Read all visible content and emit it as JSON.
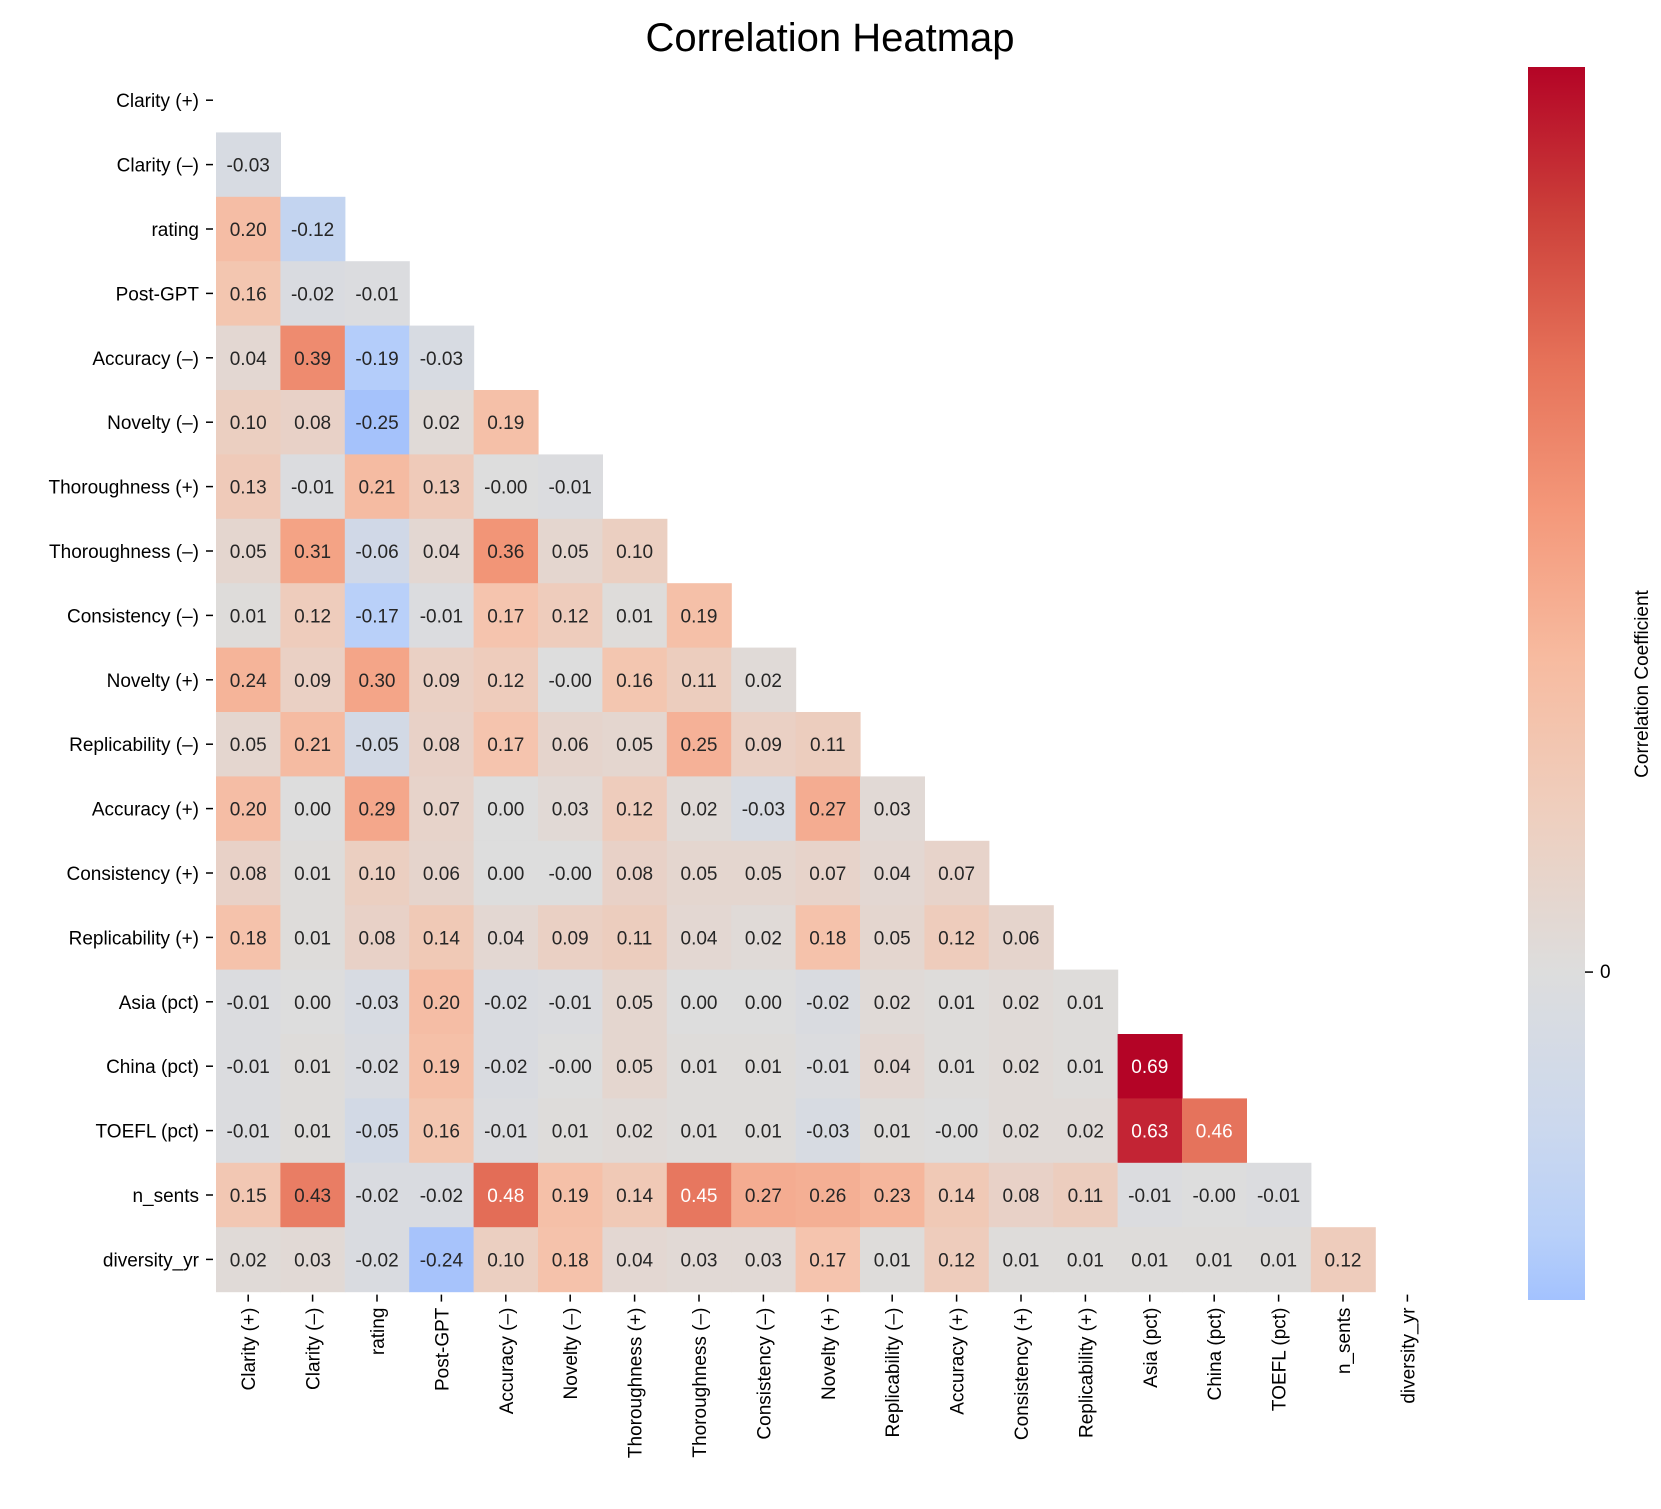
{
  "chart_data": {
    "type": "heatmap",
    "title": "Correlation Heatmap",
    "labels": [
      "Clarity (+)",
      "Clarity (–)",
      "rating",
      "Post-GPT",
      "Accuracy (–)",
      "Novelty (–)",
      "Thoroughness (+)",
      "Thoroughness (–)",
      "Consistency (–)",
      "Novelty (+)",
      "Replicability (–)",
      "Accuracy (+)",
      "Consistency (+)",
      "Replicability (+)",
      "Asia (pct)",
      "China (pct)",
      "TOEFL (pct)",
      "n_sents",
      "diversity_yr"
    ],
    "mask": "upper-triangle-and-diagonal",
    "lower_triangle_values": [
      [],
      [
        -0.03
      ],
      [
        0.2,
        -0.12
      ],
      [
        0.16,
        -0.02,
        -0.01
      ],
      [
        0.04,
        0.39,
        -0.19,
        -0.03
      ],
      [
        0.1,
        0.08,
        -0.25,
        0.02,
        0.19
      ],
      [
        0.13,
        -0.01,
        0.21,
        0.13,
        -0.0,
        -0.01
      ],
      [
        0.05,
        0.31,
        -0.06,
        0.04,
        0.36,
        0.05,
        0.1
      ],
      [
        0.01,
        0.12,
        -0.17,
        -0.01,
        0.17,
        0.12,
        0.01,
        0.19
      ],
      [
        0.24,
        0.09,
        0.3,
        0.09,
        0.12,
        -0.0,
        0.16,
        0.11,
        0.02
      ],
      [
        0.05,
        0.21,
        -0.05,
        0.08,
        0.17,
        0.06,
        0.05,
        0.25,
        0.09,
        0.11
      ],
      [
        0.2,
        0.0,
        0.29,
        0.07,
        0.0,
        0.03,
        0.12,
        0.02,
        -0.03,
        0.27,
        0.03
      ],
      [
        0.08,
        0.01,
        0.1,
        0.06,
        0.0,
        -0.0,
        0.08,
        0.05,
        0.05,
        0.07,
        0.04,
        0.07
      ],
      [
        0.18,
        0.01,
        0.08,
        0.14,
        0.04,
        0.09,
        0.11,
        0.04,
        0.02,
        0.18,
        0.05,
        0.12,
        0.06
      ],
      [
        -0.01,
        0.0,
        -0.03,
        0.2,
        -0.02,
        -0.01,
        0.05,
        0.0,
        0.0,
        -0.02,
        0.02,
        0.01,
        0.02,
        0.01
      ],
      [
        -0.01,
        0.01,
        -0.02,
        0.19,
        -0.02,
        -0.0,
        0.05,
        0.01,
        0.01,
        -0.01,
        0.04,
        0.01,
        0.02,
        0.01,
        0.69
      ],
      [
        -0.01,
        0.01,
        -0.05,
        0.16,
        -0.01,
        0.01,
        0.02,
        0.01,
        0.01,
        -0.03,
        0.01,
        -0.0,
        0.02,
        0.02,
        0.63,
        0.46
      ],
      [
        0.15,
        0.43,
        -0.02,
        -0.02,
        0.48,
        0.19,
        0.14,
        0.45,
        0.27,
        0.26,
        0.23,
        0.14,
        0.08,
        0.11,
        -0.01,
        -0.0,
        -0.01
      ],
      [
        0.02,
        0.03,
        -0.02,
        -0.24,
        0.1,
        0.18,
        0.04,
        0.03,
        0.03,
        0.17,
        0.01,
        0.12,
        0.01,
        0.01,
        0.01,
        0.01,
        0.01,
        0.12
      ]
    ],
    "value_format": "2 decimals",
    "colormap": "coolwarm",
    "center": 0,
    "color_range": [
      -0.25,
      0.69
    ],
    "colorbar": {
      "label": "Correlation Coefficient",
      "ticks": [
        0
      ],
      "tick_labels": [
        "0"
      ],
      "placement": "right"
    },
    "colors": {
      "low": "#a3c2fe",
      "mid": "#dddddd",
      "high": "#b40426",
      "dark_text": "#262626",
      "light_text": "#ffffff"
    }
  }
}
